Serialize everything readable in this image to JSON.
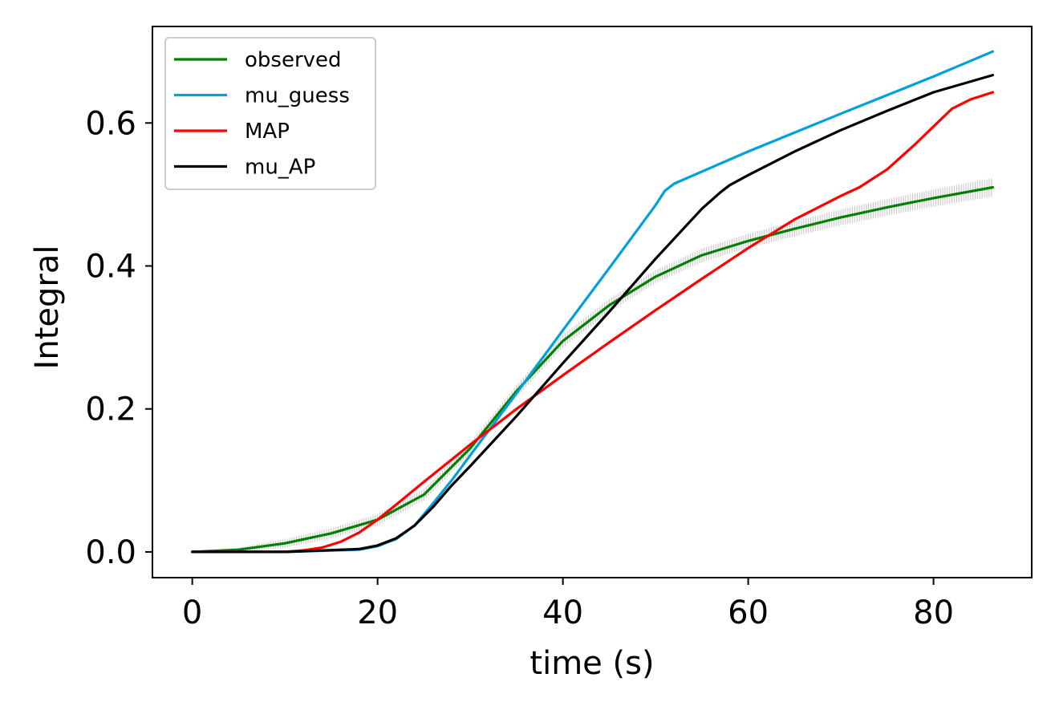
{
  "chart_data": {
    "type": "line",
    "title": "",
    "xlabel": "time (s)",
    "ylabel": "Integral",
    "xlim": [
      -4.3,
      90.6
    ],
    "ylim": [
      -0.036,
      0.735
    ],
    "xticks": [
      0,
      20,
      40,
      60,
      80
    ],
    "xtick_labels": [
      "0",
      "20",
      "40",
      "60",
      "80"
    ],
    "yticks": [
      0.0,
      0.2,
      0.4,
      0.6
    ],
    "ytick_labels": [
      "0.0",
      "0.2",
      "0.4",
      "0.6"
    ],
    "grid": false,
    "legend_position": "upper-left",
    "error_band": {
      "color": "#cccccc",
      "x": [
        0,
        10,
        20,
        30,
        40,
        50,
        60,
        70,
        80,
        86.4
      ],
      "half_width": [
        0.0,
        0.006,
        0.008,
        0.008,
        0.009,
        0.009,
        0.01,
        0.011,
        0.012,
        0.013
      ]
    },
    "series": [
      {
        "name": "observed",
        "color": "#008000",
        "x": [
          0,
          5,
          10,
          15,
          20,
          25,
          30,
          35,
          40,
          45,
          50,
          55,
          60,
          65,
          70,
          75,
          80,
          86.4
        ],
        "y": [
          0.0,
          0.003,
          0.012,
          0.026,
          0.045,
          0.08,
          0.145,
          0.225,
          0.295,
          0.345,
          0.385,
          0.415,
          0.435,
          0.452,
          0.468,
          0.482,
          0.495,
          0.51
        ]
      },
      {
        "name": "mu_guess",
        "color": "#00a0dc",
        "x": [
          0,
          10,
          18,
          20,
          22,
          24,
          26,
          28,
          30,
          35,
          40,
          45,
          50,
          51,
          52,
          55,
          60,
          70,
          80,
          86.4
        ],
        "y": [
          0.0,
          0.0,
          0.003,
          0.008,
          0.018,
          0.037,
          0.068,
          0.1,
          0.135,
          0.222,
          0.31,
          0.397,
          0.485,
          0.505,
          0.515,
          0.532,
          0.56,
          0.613,
          0.665,
          0.7
        ]
      },
      {
        "name": "MAP",
        "color": "#ff0000",
        "x": [
          0,
          10,
          12,
          14,
          16,
          18,
          20,
          22,
          25,
          30,
          35,
          40,
          45,
          50,
          55,
          60,
          65,
          70,
          72,
          75,
          78,
          80,
          82,
          84,
          86.4
        ],
        "y": [
          0.0,
          0.0,
          0.002,
          0.006,
          0.014,
          0.027,
          0.045,
          0.066,
          0.098,
          0.15,
          0.2,
          0.247,
          0.293,
          0.338,
          0.382,
          0.425,
          0.465,
          0.498,
          0.51,
          0.535,
          0.57,
          0.595,
          0.62,
          0.633,
          0.643
        ]
      },
      {
        "name": "mu_AP",
        "color": "#000000",
        "x": [
          0,
          10,
          18,
          20,
          22,
          24,
          26,
          28,
          30,
          35,
          40,
          45,
          50,
          55,
          57,
          58,
          60,
          65,
          70,
          75,
          80,
          86.4
        ],
        "y": [
          0.0,
          0.0,
          0.004,
          0.009,
          0.019,
          0.037,
          0.063,
          0.093,
          0.12,
          0.19,
          0.264,
          0.336,
          0.41,
          0.48,
          0.503,
          0.513,
          0.527,
          0.56,
          0.59,
          0.617,
          0.643,
          0.667
        ]
      }
    ]
  }
}
